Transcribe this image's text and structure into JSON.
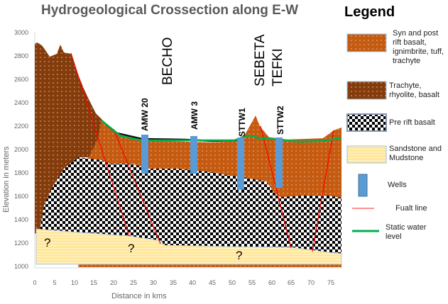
{
  "title": "Hydrogeological Crossection along E-W",
  "y_axis": {
    "label": "Elevation in meters",
    "ticks": [
      "3000",
      "2800",
      "2600",
      "2400",
      "2200",
      "2000",
      "1800",
      "1600",
      "1400",
      "1200",
      "1000"
    ]
  },
  "x_axis": {
    "label": "Distance in kms",
    "ticks": [
      "0",
      "5",
      "10",
      "15",
      "20",
      "25",
      "30",
      "35",
      "40",
      "45",
      "50",
      "55",
      "60",
      "65",
      "70",
      "75"
    ]
  },
  "places": [
    "BECHO",
    "SEBETA",
    "TEFKI"
  ],
  "wells": [
    "AMW 20",
    "AMW 3",
    "STTW1",
    "STTW2"
  ],
  "unknown_marks": [
    "?",
    "?",
    "?"
  ],
  "legend": {
    "title": "Legend",
    "items": [
      "Syn and post rift basalt, ignimbrite, tuff, trachyte",
      "Trachyte, rhyolite, basalt",
      "Pre rift basalt",
      "Sandstone and Mudstone",
      "Wells",
      "Fualt line",
      "Static water level"
    ]
  },
  "colors": {
    "syn_rift": "#c55a11",
    "trachyte": "#843c0c",
    "well": "#5b9bd5",
    "fault": "#ff0000",
    "water": "#00b050",
    "sandstone": "#ffe699"
  }
}
